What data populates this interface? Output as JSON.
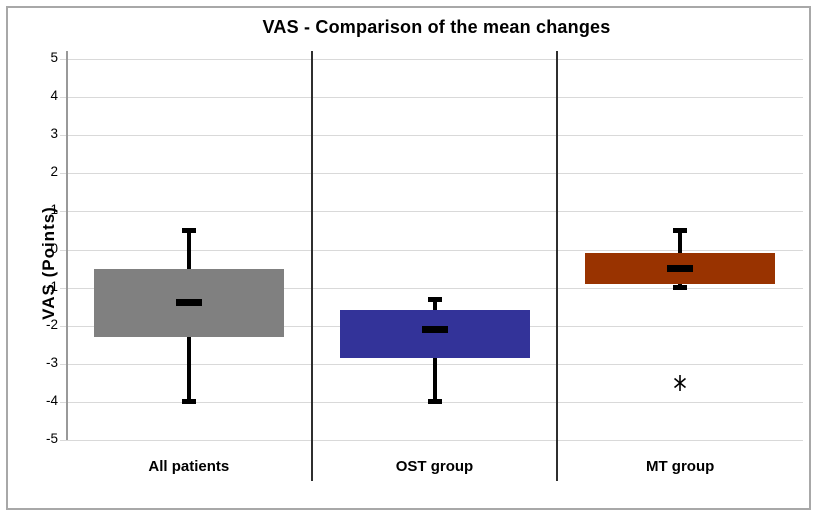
{
  "chart_data": {
    "type": "boxplot",
    "title": "VAS - Comparison of the mean changes",
    "ylabel": "VAS (Points)",
    "xlabel": "",
    "ylim": [
      -5,
      5
    ],
    "ytick_step": 1,
    "yticks": [
      5,
      4,
      3,
      2,
      1,
      0,
      -1,
      -2,
      -3,
      -4,
      -5
    ],
    "grid": "horizontal-only",
    "legend": "none",
    "categories": [
      "All patients",
      "OST group",
      "MT group"
    ],
    "series": [
      {
        "name": "All patients",
        "color": "#808080",
        "box_top": -0.5,
        "box_bottom": -2.3,
        "mean": -1.4,
        "whisker_high": 0.5,
        "whisker_low": -4.0,
        "outliers": []
      },
      {
        "name": "OST group",
        "color": "#333399",
        "box_top": -1.6,
        "box_bottom": -2.85,
        "mean": -2.1,
        "whisker_high": -1.3,
        "whisker_low": -4.0,
        "outliers": []
      },
      {
        "name": "MT group",
        "color": "#993300",
        "box_top": -0.1,
        "box_bottom": -0.9,
        "mean": -0.5,
        "whisker_high": 0.5,
        "whisker_low": -1.0,
        "outliers": [
          -3.5
        ]
      }
    ],
    "style": {
      "gridline_color": "#d9d9d9",
      "divider_color": "#2f2f2f",
      "axis_color": "#999999",
      "marker_color": "#000000",
      "frame_color": "#a8a8a8",
      "background": "#ffffff"
    }
  }
}
